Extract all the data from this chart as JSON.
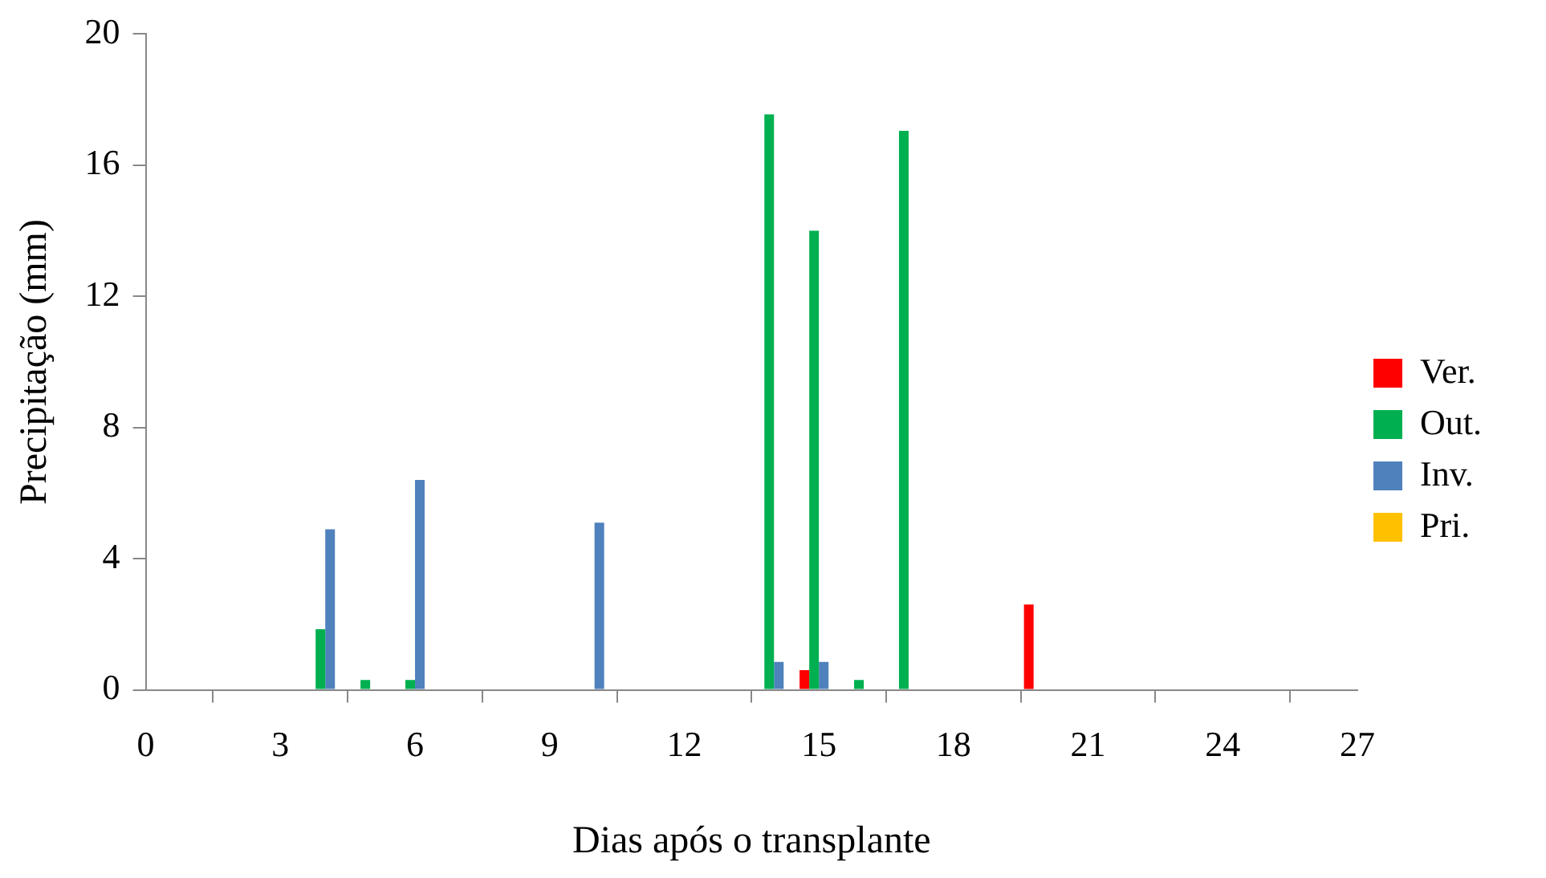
{
  "chart_data": {
    "type": "bar",
    "xlabel": "Dias após o transplante",
    "ylabel": "Precipitação (mm)",
    "x": [
      4,
      5,
      6,
      10,
      14,
      15,
      16,
      17,
      20
    ],
    "series": [
      {
        "name": "Ver.",
        "color": "#ff0000",
        "values": [
          null,
          null,
          null,
          null,
          null,
          0.6,
          null,
          null,
          2.6
        ]
      },
      {
        "name": "Out.",
        "color": "#00b050",
        "values": [
          1.85,
          0.3,
          0.3,
          null,
          17.55,
          14.0,
          0.3,
          17.05,
          null
        ]
      },
      {
        "name": "Inv.",
        "color": "#4f81bd",
        "values": [
          4.9,
          null,
          6.4,
          5.1,
          0.85,
          0.85,
          null,
          null,
          null
        ]
      },
      {
        "name": "Pri.",
        "color": "#ffc000",
        "values": [
          null,
          null,
          null,
          null,
          null,
          null,
          null,
          null,
          null
        ]
      }
    ],
    "xlim": [
      0,
      27
    ],
    "xticks": [
      0,
      3,
      6,
      9,
      12,
      15,
      18,
      21,
      24,
      27
    ],
    "ylim": [
      0,
      20
    ],
    "yticks": [
      0,
      4,
      8,
      12,
      16,
      20
    ],
    "legend": "right"
  }
}
